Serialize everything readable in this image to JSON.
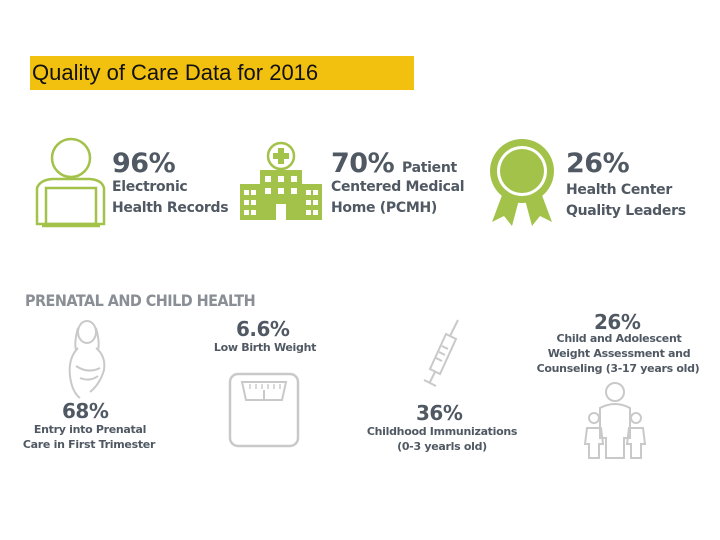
{
  "title": "Quality of Care Data for 2016",
  "colors": {
    "title_bg": "#f2c00f",
    "accent_green": "#a3c24a",
    "text_gray": "#505963",
    "icon_gray": "#c9c9c9"
  },
  "top_stats": [
    {
      "percent": "96%",
      "line1": "Electronic",
      "line2": "Health Records",
      "icon": "computer-user-icon"
    },
    {
      "percent": "70%",
      "inline": "Patient",
      "line1": "Centered Medical",
      "line2": "Home (PCMH)",
      "icon": "hospital-icon"
    },
    {
      "percent": "26%",
      "line1": "Health Center",
      "line2": "Quality Leaders",
      "icon": "award-ribbon-icon"
    }
  ],
  "prenatal": {
    "heading": "PRENATAL AND CHILD HEALTH",
    "low_birth_weight": {
      "percent": "6.6%",
      "label": "Low Birth Weight",
      "icon": "scale-icon"
    },
    "prenatal_entry": {
      "percent": "68%",
      "line1": "Entry into Prenatal",
      "line2": "Care in First Trimester",
      "icon": "pregnant-woman-icon"
    },
    "immunizations": {
      "percent": "36%",
      "line1": "Childhood Immunizations",
      "line2": "(0-3 yearls old)",
      "icon": "syringe-icon"
    },
    "weight_assessment": {
      "percent": "26%",
      "line1": "Child and Adolescent",
      "line2": "Weight Assessment and",
      "line3": "Counseling (3-17 years old)",
      "icon": "family-icon"
    }
  }
}
